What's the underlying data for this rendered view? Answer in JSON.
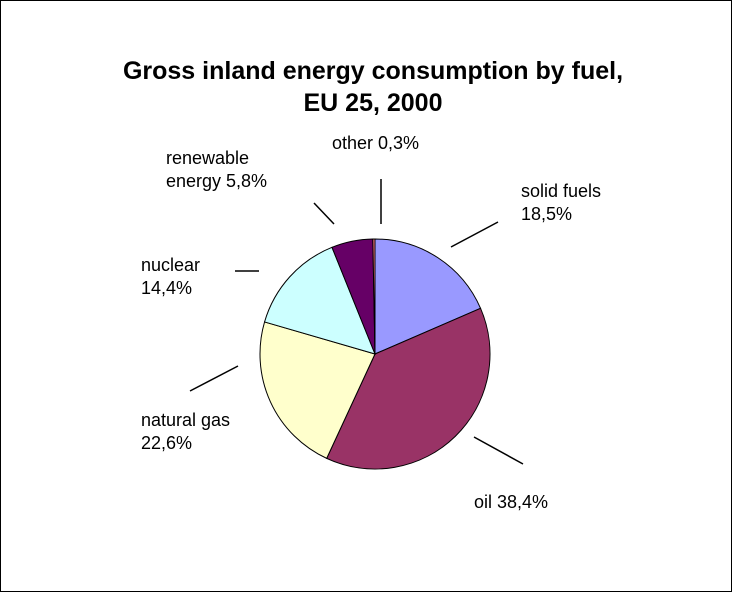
{
  "chart_data": {
    "type": "pie",
    "title": "Gross inland energy consumption by fuel, EU 25, 2000",
    "title_lines": [
      "Gross inland energy consumption by fuel,",
      "EU 25, 2000"
    ],
    "unit": "%",
    "start": "12 o'clock, clockwise",
    "slices": [
      {
        "name": "solid fuels",
        "value": 18.5,
        "label_lines": [
          "solid fuels",
          "18,5%"
        ],
        "color": "#9999FF"
      },
      {
        "name": "oil",
        "value": 38.4,
        "label_lines": [
          "oil 38,4%"
        ],
        "color": "#993366"
      },
      {
        "name": "natural gas",
        "value": 22.6,
        "label_lines": [
          "natural gas",
          "22,6%"
        ],
        "color": "#FFFFCC"
      },
      {
        "name": "nuclear",
        "value": 14.4,
        "label_lines": [
          "nuclear",
          "14,4%"
        ],
        "color": "#CCFFFF"
      },
      {
        "name": "renewable energy",
        "value": 5.8,
        "label_lines": [
          "renewable",
          "energy 5,8%"
        ],
        "color": "#660066"
      },
      {
        "name": "other",
        "value": 0.3,
        "label_lines": [
          "other 0,3%"
        ],
        "color": "#FF8080"
      }
    ],
    "legend": "none"
  }
}
